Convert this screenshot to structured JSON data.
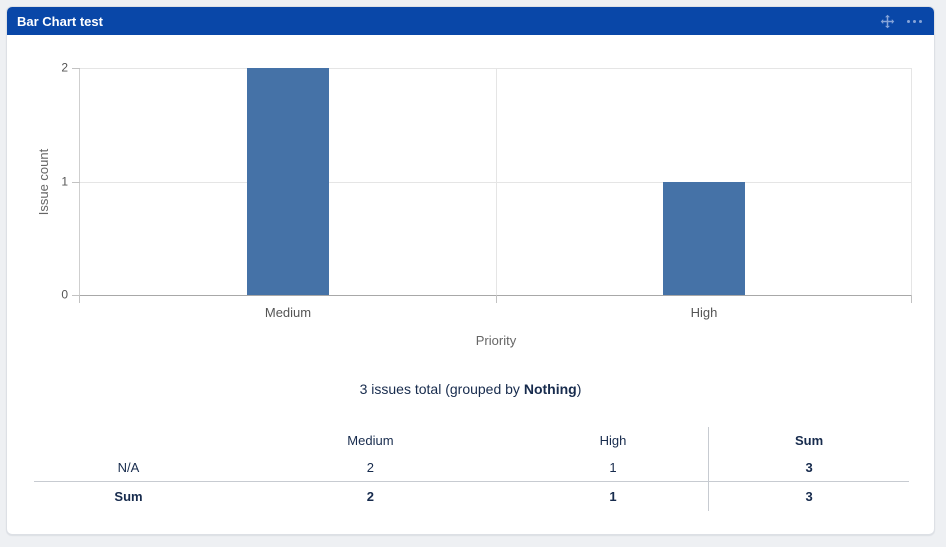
{
  "panel": {
    "title": "Bar Chart test",
    "header_icons": [
      "move-icon",
      "more-options-icon"
    ]
  },
  "chart_data": {
    "type": "bar",
    "title": "",
    "categories": [
      "Medium",
      "High"
    ],
    "values": [
      2,
      1
    ],
    "xlabel": "Priority",
    "ylabel": "Issue count",
    "ylim": [
      0,
      2
    ],
    "yticks": [
      0,
      1,
      2
    ],
    "bar_color": "#4572A7",
    "grid": true,
    "legend": "none"
  },
  "summary": {
    "prefix": "3 issues total (grouped by ",
    "group": "Nothing",
    "suffix": ")"
  },
  "table": {
    "columns": [
      "",
      "Medium",
      "High",
      "Sum"
    ],
    "rows": [
      {
        "label": "N/A",
        "values": [
          "2",
          "1",
          "3"
        ],
        "bold": false
      },
      {
        "label": "Sum",
        "values": [
          "2",
          "1",
          "3"
        ],
        "bold": true
      }
    ]
  },
  "colors": {
    "header_bg": "#0947A8",
    "header_icon": "#86A4D8",
    "bar": "#4572A7",
    "body_text": "#172B4D",
    "axis_text": "#666666"
  }
}
